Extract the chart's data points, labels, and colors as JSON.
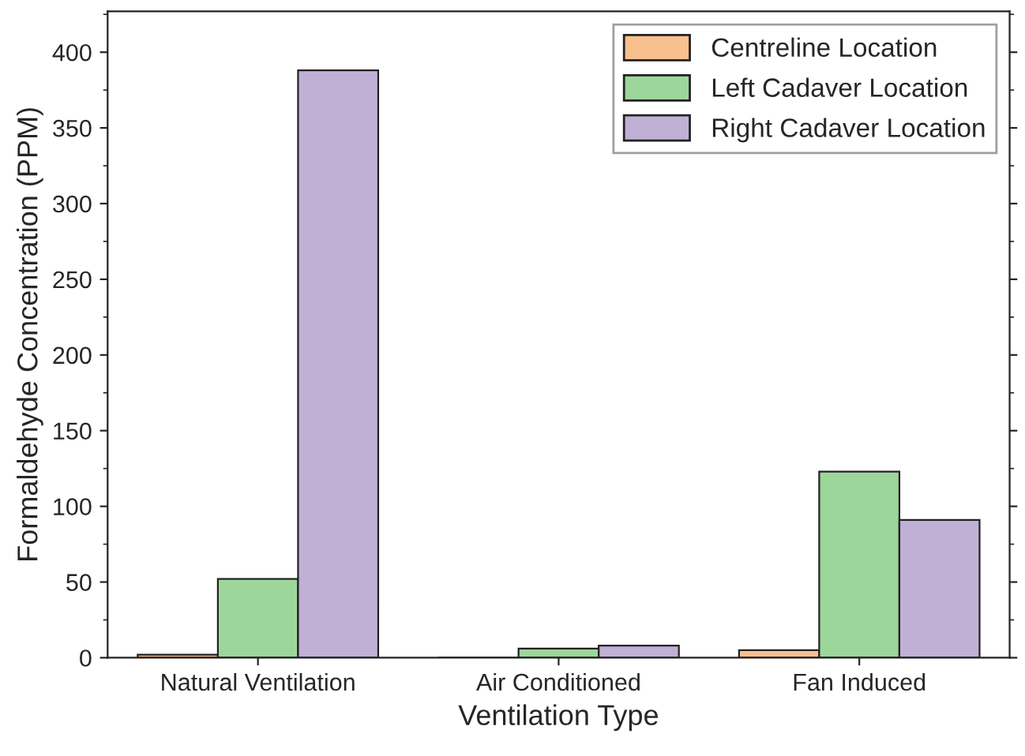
{
  "chart_data": {
    "type": "bar",
    "xlabel": "Ventilation Type",
    "ylabel": "Formaldehyde Concentration (PPM)",
    "categories": [
      "Natural Ventilation",
      "Air Conditioned",
      "Fan Induced"
    ],
    "series": [
      {
        "name": "Centreline Location",
        "color": "#f9c08f",
        "values": [
          2,
          0,
          5
        ]
      },
      {
        "name": "Left Cadaver Location",
        "color": "#9dd69b",
        "values": [
          52,
          6,
          123
        ]
      },
      {
        "name": "Right Cadaver Location",
        "color": "#c1b0d6",
        "values": [
          388,
          8,
          91
        ]
      }
    ],
    "ylim": [
      0,
      427
    ],
    "yticks": [
      0,
      50,
      100,
      150,
      200,
      250,
      300,
      350,
      400
    ],
    "grid": false,
    "legend": "top right"
  }
}
